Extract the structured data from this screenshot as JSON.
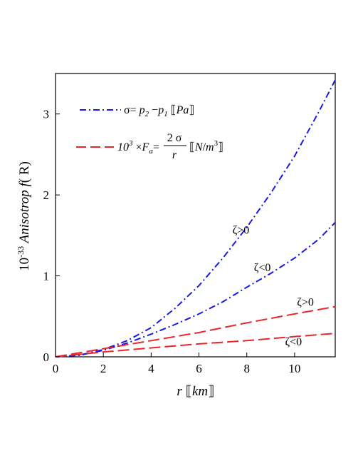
{
  "chart_data": {
    "type": "line",
    "xlabel": "r [[km]]",
    "ylabel": "10^-33 Anisotrop f(R)",
    "xlim": [
      0,
      11.7
    ],
    "ylim": [
      0,
      3.5
    ],
    "xticks": [
      0,
      2,
      4,
      6,
      8,
      10
    ],
    "yticks": [
      0,
      1,
      2,
      3
    ],
    "grid": false,
    "legend_position": "top-left",
    "legend": [
      {
        "label": "σ= p2 − p1 [[Pa]]",
        "style": "dash-dot",
        "color": "#1a1adf"
      },
      {
        "label": "10^3 × Fa = 2σ / r [[N/m^3]]",
        "style": "dashed",
        "color": "#e8262b"
      }
    ],
    "series": [
      {
        "curve": "sigma, ζ>0",
        "color": "#1a1adf",
        "style": "dash-dot",
        "x": [
          0,
          1,
          2,
          3,
          4,
          5,
          6,
          7,
          8,
          9,
          10,
          11,
          11.7
        ],
        "y": [
          0,
          0.02,
          0.09,
          0.2,
          0.36,
          0.6,
          0.88,
          1.22,
          1.6,
          2.02,
          2.48,
          3.02,
          3.42
        ]
      },
      {
        "curve": "sigma, ζ<0",
        "color": "#1a1adf",
        "style": "dash-dot",
        "x": [
          0,
          1,
          2,
          3,
          4,
          5,
          6,
          7,
          8,
          9,
          10,
          11,
          11.7
        ],
        "y": [
          0,
          0.02,
          0.08,
          0.17,
          0.28,
          0.4,
          0.53,
          0.68,
          0.86,
          1.03,
          1.22,
          1.45,
          1.66
        ]
      },
      {
        "curve": "Fa, ζ>0",
        "color": "#e8262b",
        "style": "dashed",
        "x": [
          0,
          2,
          4,
          6,
          8,
          10,
          11.7
        ],
        "y": [
          0,
          0.1,
          0.2,
          0.3,
          0.42,
          0.53,
          0.62
        ]
      },
      {
        "curve": "Fa, ζ<0",
        "color": "#e8262b",
        "style": "dashed",
        "x": [
          0,
          2,
          4,
          6,
          8,
          10,
          11.7
        ],
        "y": [
          0,
          0.06,
          0.11,
          0.16,
          0.2,
          0.25,
          0.29
        ]
      }
    ],
    "annotations": [
      {
        "text": "ζ>0",
        "x": 7.4,
        "y": 1.52
      },
      {
        "text": "ζ<0",
        "x": 8.3,
        "y": 1.06
      },
      {
        "text": "ζ>0",
        "x": 10.1,
        "y": 0.63
      },
      {
        "text": "ζ<0",
        "x": 9.6,
        "y": 0.14
      }
    ]
  }
}
